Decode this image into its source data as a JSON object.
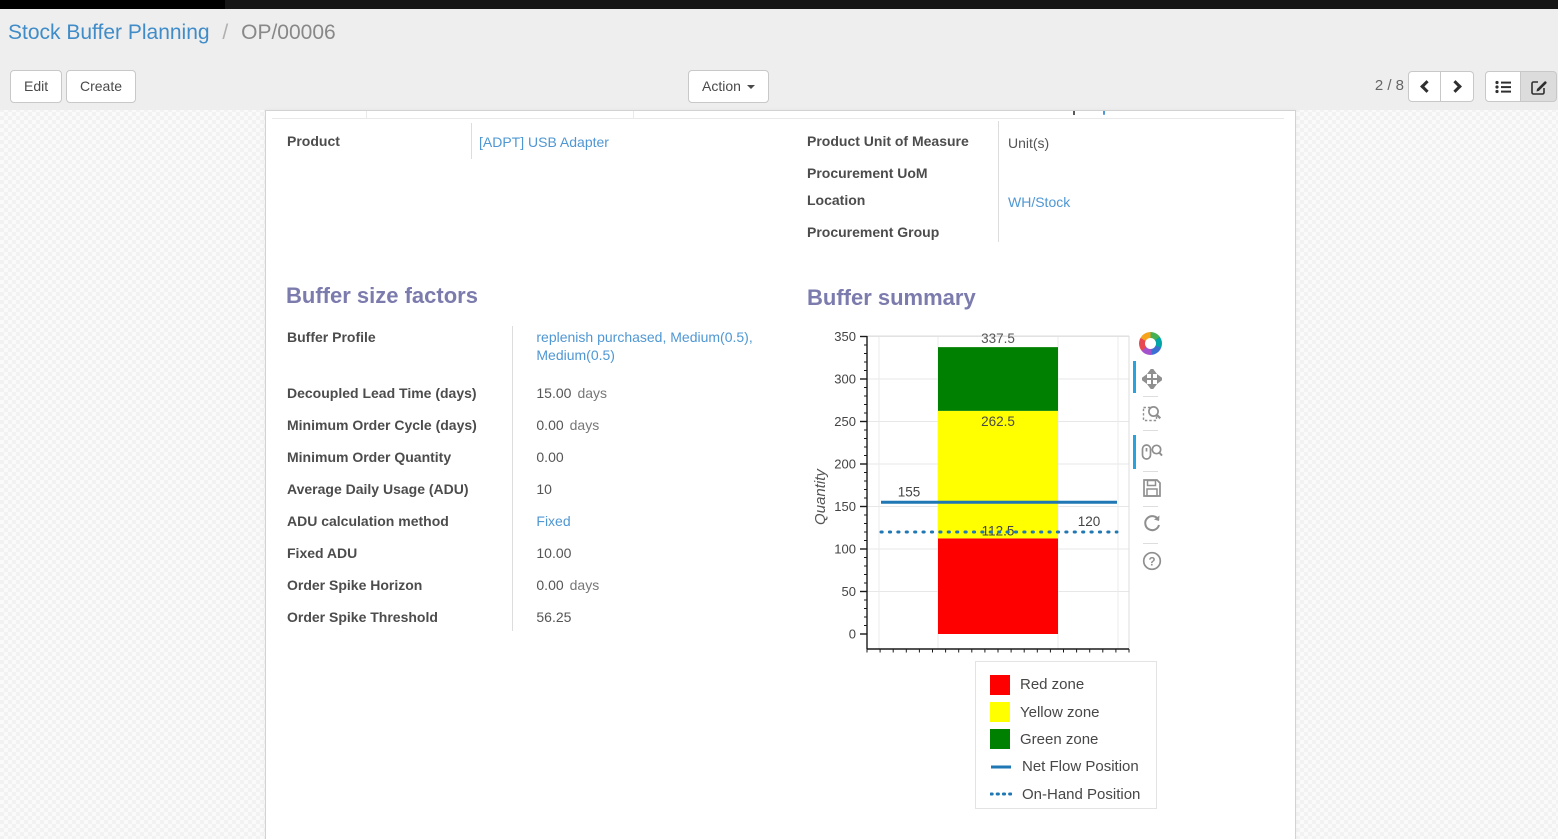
{
  "breadcrumb": {
    "parent": "Stock Buffer Planning",
    "separator": "/",
    "current": "OP/00006"
  },
  "toolbar": {
    "edit_label": "Edit",
    "create_label": "Create",
    "action_label": "Action",
    "pager": "2 / 8"
  },
  "form": {
    "product_left": {
      "label": "Product",
      "value": "[ADPT] USB Adapter"
    },
    "product_right": [
      {
        "label": "Product Unit of Measure",
        "value": "Unit(s)",
        "link": false
      },
      {
        "label": "Procurement UoM",
        "value": "",
        "link": false
      },
      {
        "label": "Location",
        "value": "WH/Stock",
        "link": true
      },
      {
        "label": "Procurement Group",
        "value": "",
        "link": false
      }
    ],
    "section_factors": "Buffer size factors",
    "section_summary": "Buffer summary",
    "factors_rows": [
      {
        "label": "Buffer Profile",
        "value": "replenish purchased, Medium(0.5), Medium(0.5)",
        "suffix": ""
      },
      {
        "label": "Decoupled Lead Time (days)",
        "value": "15.00",
        "suffix": "days"
      },
      {
        "label": "Minimum Order Cycle (days)",
        "value": "0.00",
        "suffix": "days"
      },
      {
        "label": "Minimum Order Quantity",
        "value": "0.00",
        "suffix": ""
      },
      {
        "label": "Average Daily Usage (ADU)",
        "value": "10",
        "suffix": ""
      },
      {
        "label": "ADU calculation method",
        "value": "Fixed",
        "suffix": ""
      },
      {
        "label": "Fixed ADU",
        "value": "10.00",
        "suffix": ""
      },
      {
        "label": "Order Spike Horizon",
        "value": "0.00",
        "suffix": "days"
      },
      {
        "label": "Order Spike Threshold",
        "value": "56.25",
        "suffix": ""
      }
    ]
  },
  "chart_data": {
    "type": "bar",
    "title": "Buffer summary",
    "ylabel": "Quantity",
    "ylim": [
      0,
      350
    ],
    "y_major_ticks": [
      0,
      50,
      100,
      150,
      200,
      250,
      300,
      350
    ],
    "y_minor_step": 10,
    "grid": true,
    "zones": [
      {
        "name": "Red zone",
        "from": 0,
        "to": 112.5,
        "color": "#ff0000",
        "label": "112.5"
      },
      {
        "name": "Yellow zone",
        "from": 112.5,
        "to": 262.5,
        "color": "#ffff00",
        "label": "262.5"
      },
      {
        "name": "Green zone",
        "from": 262.5,
        "to": 337.5,
        "color": "#008000",
        "label": "337.5"
      }
    ],
    "lines": [
      {
        "name": "Net Flow Position",
        "value": 155,
        "style": "solid",
        "color": "#1f77b4",
        "label": "155",
        "label_side": "left"
      },
      {
        "name": "On-Hand Position",
        "value": 120,
        "style": "dotted",
        "color": "#1f77b4",
        "label": "120",
        "label_side": "right"
      }
    ],
    "legend": [
      "Red zone",
      "Yellow zone",
      "Green zone",
      "Net Flow Position",
      "On-Hand Position"
    ],
    "legend_position": "below-right"
  },
  "chart_toolbar": {
    "tools": [
      "pan",
      "box-zoom",
      "wheel-zoom",
      "save",
      "reset",
      "help"
    ],
    "active": [
      "pan",
      "wheel-zoom"
    ]
  },
  "colors": {
    "accent_line": "#1f77b4",
    "section_heading": "#7c7bad",
    "link": "#4f97d3",
    "red_zone": "#ff0000",
    "yellow_zone": "#ffff00",
    "green_zone": "#008000"
  }
}
